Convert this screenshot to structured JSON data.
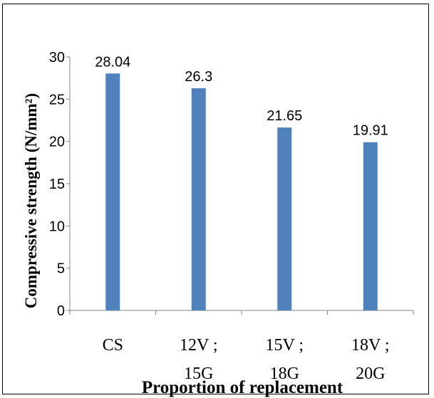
{
  "chart_data": {
    "type": "bar",
    "categories": [
      [
        "CS"
      ],
      [
        "12V ;",
        "15G"
      ],
      [
        "15V ;",
        "18G"
      ],
      [
        "18V ;",
        "20G"
      ]
    ],
    "values": [
      28.04,
      26.3,
      21.65,
      19.91
    ],
    "data_labels": [
      "28.04",
      "26.3",
      "21.65",
      "19.91"
    ],
    "ylim": [
      0,
      30
    ],
    "yticks": [
      "0",
      "5",
      "10",
      "15",
      "20",
      "25",
      "30"
    ],
    "ylabel": "Compressive strength (N/mm²)",
    "xlabel": "Proportion of replacement",
    "grid": false,
    "legend": "none",
    "bar_color": "#4F81BD",
    "axis_color": "#868686"
  }
}
